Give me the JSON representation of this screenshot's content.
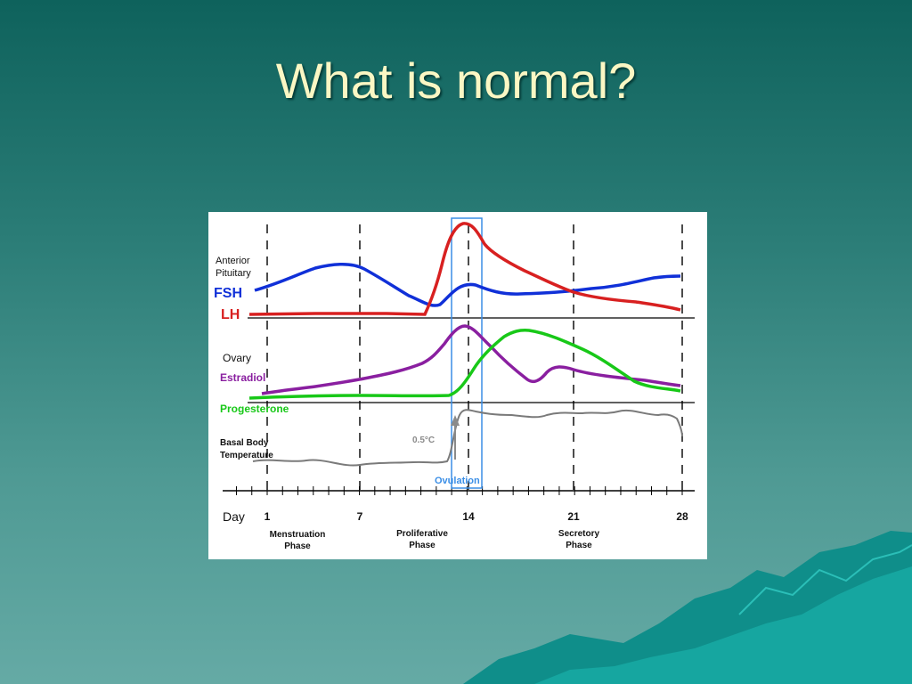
{
  "slide": {
    "title": "What is normal?"
  },
  "colors": {
    "fsh": "#1030d8",
    "lh": "#d82020",
    "estradiol": "#8a1fa0",
    "progesterone": "#18c818",
    "bbt": "#7a7a7a",
    "ovulation_box": "#3a8ee6"
  },
  "diagram": {
    "anterior_pituitary": "Anterior\nPituitary",
    "anterior_line1": "Anterior",
    "anterior_line2": "Pituitary",
    "fsh": "FSH",
    "lh": "LH",
    "ovary": "Ovary",
    "estradiol": "Estradiol",
    "progesterone": "Progesterone",
    "bbt_line1": "Basal Body",
    "bbt_line2": "Temperature",
    "temp_rise": "0.5°C",
    "ovulation": "Ovulation",
    "day_label": "Day",
    "days": [
      "1",
      "7",
      "14",
      "21",
      "28"
    ],
    "phases": [
      {
        "line1": "Menstruation",
        "line2": "Phase"
      },
      {
        "line1": "Proliferative",
        "line2": "Phase"
      },
      {
        "line1": "Secretory",
        "line2": "Phase"
      }
    ]
  }
}
